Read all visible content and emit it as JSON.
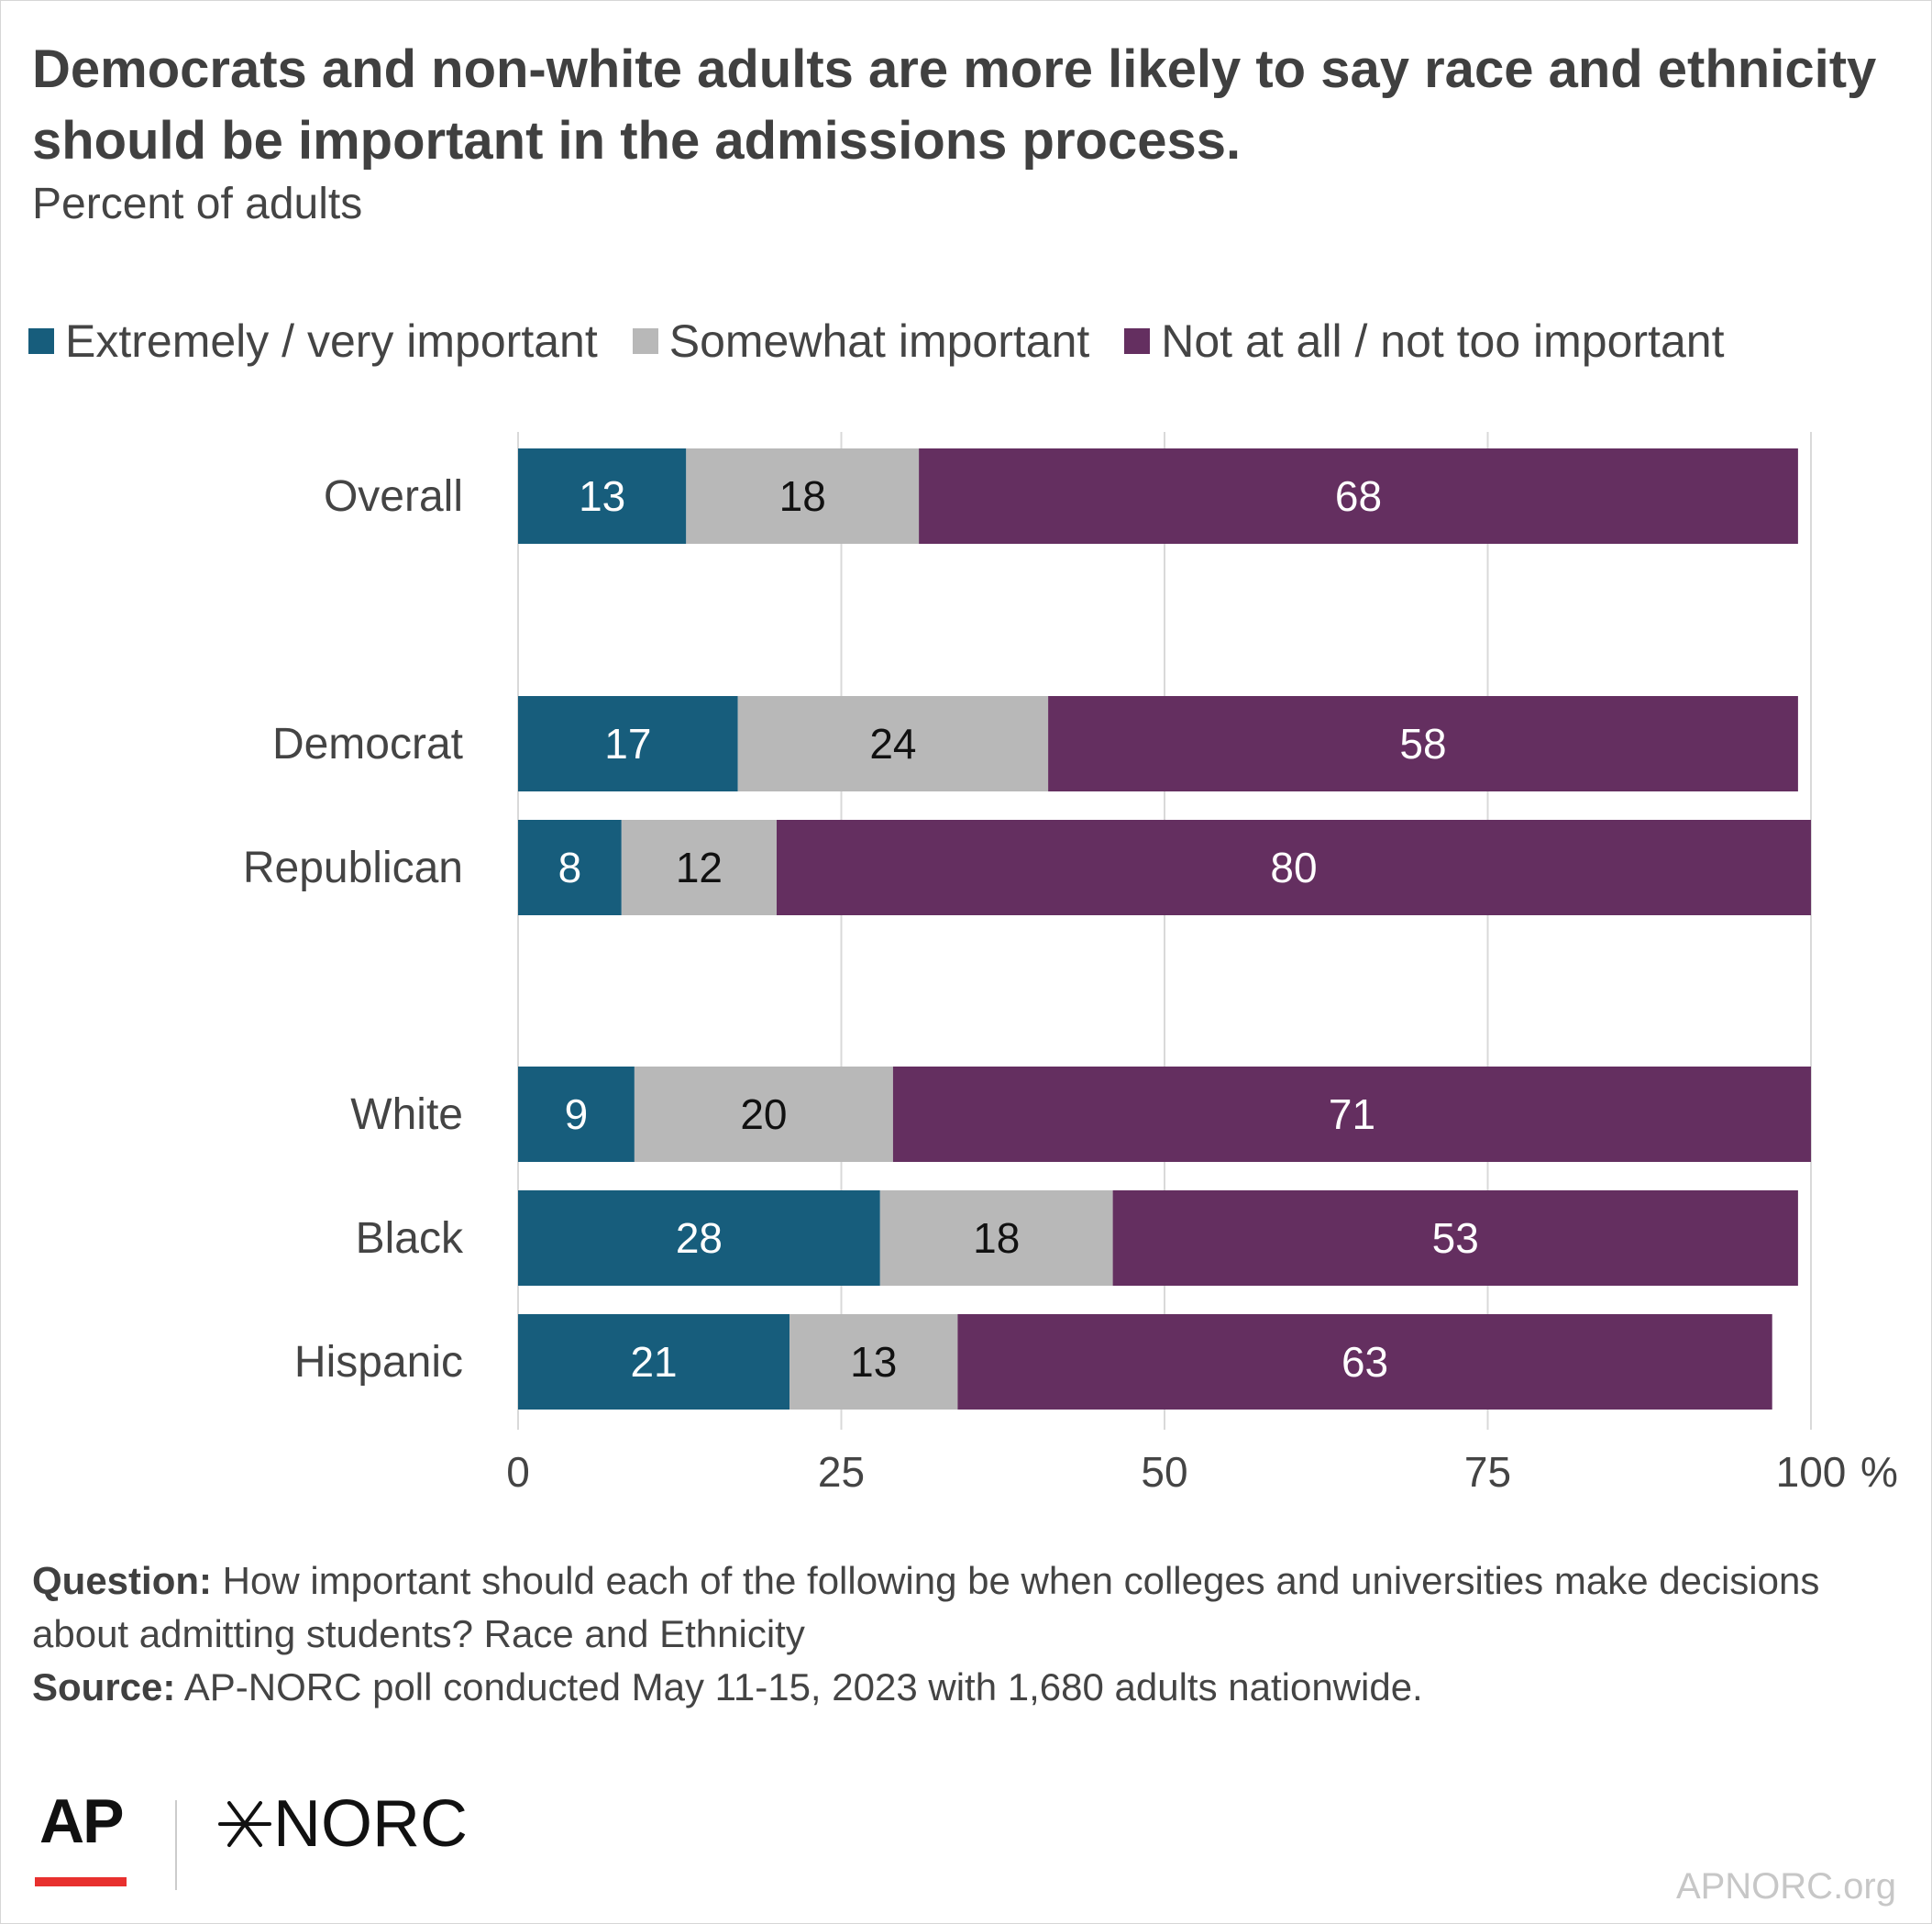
{
  "header": {
    "title": "Democrats and non-white adults are more likely to say race and ethnicity should be important in the admissions process.",
    "subtitle": "Percent of adults"
  },
  "legend": {
    "items": [
      {
        "label": "Extremely / very important",
        "color": "#175d7c"
      },
      {
        "label": "Somewhat important",
        "color": "#b8b8b8"
      },
      {
        "label": "Not at all / not too important",
        "color": "#642f60"
      }
    ]
  },
  "chart_data": {
    "type": "bar",
    "orientation": "horizontal",
    "stacked": true,
    "categories": [
      "Overall",
      "Democrat",
      "Republican",
      "White",
      "Black",
      "Hispanic"
    ],
    "groups": [
      [
        "Overall"
      ],
      [
        "Democrat",
        "Republican"
      ],
      [
        "White",
        "Black",
        "Hispanic"
      ]
    ],
    "series": [
      {
        "name": "Extremely / very important",
        "color": "#175d7c",
        "label_color": "#ffffff",
        "values": [
          13,
          17,
          8,
          9,
          28,
          21
        ]
      },
      {
        "name": "Somewhat important",
        "color": "#b8b8b8",
        "label_color": "#111111",
        "values": [
          18,
          24,
          12,
          20,
          18,
          13
        ]
      },
      {
        "name": "Not at all / not too important",
        "color": "#642f60",
        "label_color": "#ffffff",
        "values": [
          68,
          58,
          80,
          71,
          53,
          63
        ]
      }
    ],
    "xlim": [
      0,
      100
    ],
    "xticks": [
      0,
      25,
      50,
      75,
      100
    ],
    "xtick_labels": [
      "0",
      "25",
      "50",
      "75",
      "100"
    ],
    "x_unit": "%",
    "grid": true,
    "legend_position": "top"
  },
  "footer": {
    "question_label": "Question:",
    "question_text": "How important should each of the following be when colleges and universities make decisions about admitting students? Race and Ethnicity",
    "source_label": "Source:",
    "source_text": "AP-NORC poll conducted May 11-15, 2023 with 1,680 adults nationwide."
  },
  "branding": {
    "ap_logo": "AP",
    "norc_logo": "NORC",
    "norc_star_icon": "asterisk-star-icon",
    "credit": "APNORC.org"
  }
}
